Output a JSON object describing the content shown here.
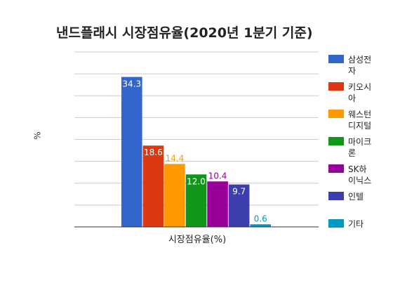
{
  "chart_data": {
    "type": "bar",
    "title": "낸드플래시 시장점유율(2020년 1분기 기준)",
    "xlabel": "시장점유율(%)",
    "ylabel": "%",
    "categories": [
      "시장점유율(%)"
    ],
    "ylim": [
      0,
      40
    ],
    "grid": true,
    "legend_position": "right",
    "series": [
      {
        "name": "삼성전자",
        "values": [
          34.3
        ],
        "color": "#3366cc",
        "label_color": "#ffffff"
      },
      {
        "name": "키오시아",
        "values": [
          18.6
        ],
        "color": "#dc3912",
        "label_color": "#ffffff"
      },
      {
        "name": "웨스턴디지털",
        "values": [
          14.4
        ],
        "color": "#ff9900",
        "label_color": "#ff9900"
      },
      {
        "name": "마이크론",
        "values": [
          12.0
        ],
        "color": "#109618",
        "label_color": "#ffffff"
      },
      {
        "name": "SK하이닉스",
        "values": [
          10.4
        ],
        "color": "#990099",
        "label_color": "#990099"
      },
      {
        "name": "인텔",
        "values": [
          9.7
        ],
        "color": "#3b3eac",
        "label_color": "#ffffff"
      },
      {
        "name": "기타",
        "values": [
          0.6
        ],
        "color": "#0099c6",
        "label_color": "#0099c6"
      }
    ]
  }
}
